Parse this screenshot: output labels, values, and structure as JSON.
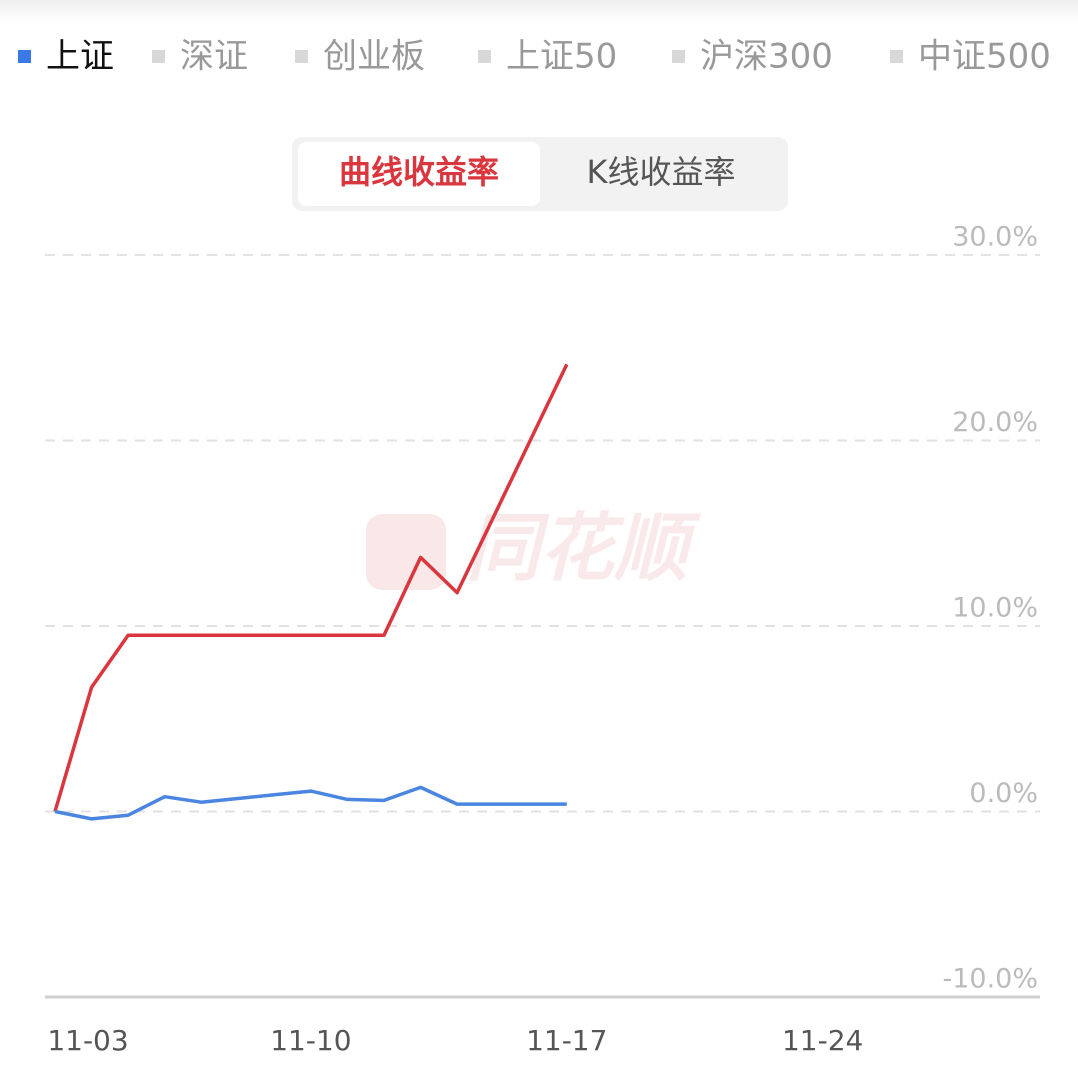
{
  "chart_data": {
    "type": "line",
    "index_tabs": [
      "上证",
      "深证",
      "创业板",
      "上证50",
      "沪深300",
      "中证500"
    ],
    "selected_index": 0,
    "mode_tabs": [
      "曲线收益率",
      "K线收益率"
    ],
    "selected_mode": 0,
    "watermark": "同花顺",
    "categories": [
      "11-03",
      null,
      null,
      null,
      null,
      null,
      null,
      "11-10",
      null,
      null,
      null,
      null,
      null,
      null,
      "11-17",
      null,
      null,
      null,
      null,
      null,
      null,
      "11-24",
      null,
      null,
      null,
      null,
      null,
      null
    ],
    "series": [
      {
        "color": "#d9363e",
        "values": [
          0,
          6.7,
          9.5,
          9.5,
          9.5,
          9.5,
          9.5,
          9.5,
          9.5,
          9.5,
          13.7,
          11.8,
          15.9,
          20.0,
          24.1,
          null,
          null,
          null,
          null,
          null,
          null,
          null,
          null,
          null,
          null,
          null,
          null,
          null
        ]
      },
      {
        "name": "上证",
        "color": "#4a86e0",
        "values": [
          0,
          -0.4,
          -0.2,
          0.8,
          0.5,
          0.7,
          0.9,
          1.1,
          0.65,
          0.6,
          1.3,
          0.4,
          0.4,
          0.4,
          0.4,
          null,
          null,
          null,
          null,
          null,
          null,
          null,
          null,
          null,
          null,
          null,
          null,
          null
        ]
      }
    ],
    "ylim": [
      -10,
      30
    ],
    "yticks": [
      {
        "value": -10,
        "label": "-10.0%"
      },
      {
        "value": 0,
        "label": "0.0%"
      },
      {
        "value": 10,
        "label": "10.0%"
      },
      {
        "value": 20,
        "label": "20.0%"
      },
      {
        "value": 30,
        "label": "30.0%"
      }
    ],
    "grid": true
  }
}
